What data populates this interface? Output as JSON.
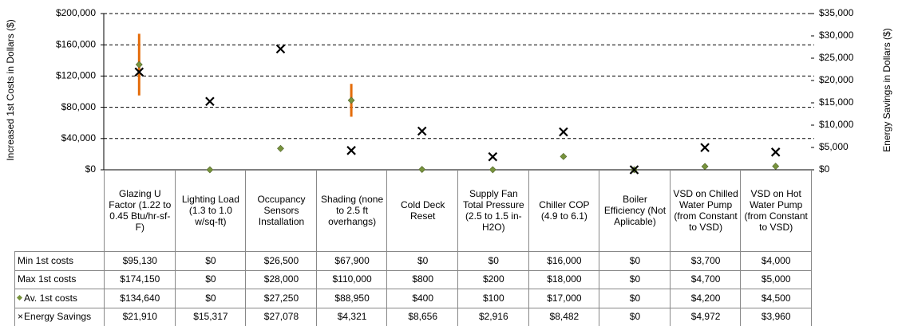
{
  "chart_data": {
    "type": "range",
    "y_label": "Increased 1st Costs in Dollars ($)",
    "y2_label": "Energy Savings in Dollars ($)",
    "categories": [
      "Glazing U Factor (1.22 to 0.45 Btu/hr-sf-F)",
      "Lighting Load (1.3 to 1.0 w/sq-ft)",
      "Occupancy Sensors Installation",
      "Shading (none to 2.5 ft overhangs)",
      "Cold Deck Reset",
      "Supply Fan Total Pressure (2.5 to 1.5 in-H2O)",
      "Chiller COP (4.9 to 6.1)",
      "Boiler Efficiency (Not Aplicable)",
      "VSD on Chilled Water Pump (from Constant to VSD)",
      "VSD on Hot Water Pump (from Constant to VSD)"
    ],
    "series": [
      {
        "name": "Min 1st costs",
        "color": "#e46c0a",
        "values": [
          95130,
          0,
          26500,
          67900,
          0,
          0,
          16000,
          0,
          3700,
          4000
        ],
        "value_labels": [
          "$95,130",
          "$0",
          "$26,500",
          "$67,900",
          "$0",
          "$0",
          "$16,000",
          "$0",
          "$3,700",
          "$4,000"
        ]
      },
      {
        "name": "Max 1st costs",
        "color": "#e46c0a",
        "values": [
          174150,
          0,
          28000,
          110000,
          800,
          200,
          18000,
          0,
          4700,
          5000
        ],
        "value_labels": [
          "$174,150",
          "$0",
          "$28,000",
          "$110,000",
          "$800",
          "$200",
          "$18,000",
          "$0",
          "$4,700",
          "$5,000"
        ]
      },
      {
        "name": "Av. 1st costs",
        "color": "#77933c",
        "values": [
          134640,
          0,
          27250,
          88950,
          400,
          100,
          17000,
          0,
          4200,
          4500
        ],
        "value_labels": [
          "$134,640",
          "$0",
          "$27,250",
          "$88,950",
          "$400",
          "$100",
          "$17,000",
          "$0",
          "$4,200",
          "$4,500"
        ]
      },
      {
        "name": "Energy Savings",
        "color": "#000000",
        "axis": "y2",
        "values": [
          21910,
          15317,
          27078,
          4321,
          8656,
          2916,
          8482,
          0,
          4972,
          3960
        ],
        "value_labels": [
          "$21,910",
          "$15,317",
          "$27,078",
          "$4,321",
          "$8,656",
          "$2,916",
          "$8,482",
          "$0",
          "$4,972",
          "$3,960"
        ]
      }
    ],
    "ylim": [
      0,
      200000
    ],
    "yticks": [
      {
        "value": 0,
        "label": "$0"
      },
      {
        "value": 40000,
        "label": "$40,000"
      },
      {
        "value": 80000,
        "label": "$80,000"
      },
      {
        "value": 120000,
        "label": "$120,000"
      },
      {
        "value": 160000,
        "label": "$160,000"
      },
      {
        "value": 200000,
        "label": "$200,000"
      }
    ],
    "y2lim": [
      0,
      35000
    ],
    "y2ticks": [
      {
        "value": 0,
        "label": "$0"
      },
      {
        "value": 5000,
        "label": "$5,000"
      },
      {
        "value": 10000,
        "label": "$10,000"
      },
      {
        "value": 15000,
        "label": "$15,000"
      },
      {
        "value": 20000,
        "label": "$20,000"
      },
      {
        "value": 25000,
        "label": "$25,000"
      },
      {
        "value": 30000,
        "label": "$30,000"
      },
      {
        "value": 35000,
        "label": "$35,000"
      }
    ],
    "grid": true
  }
}
